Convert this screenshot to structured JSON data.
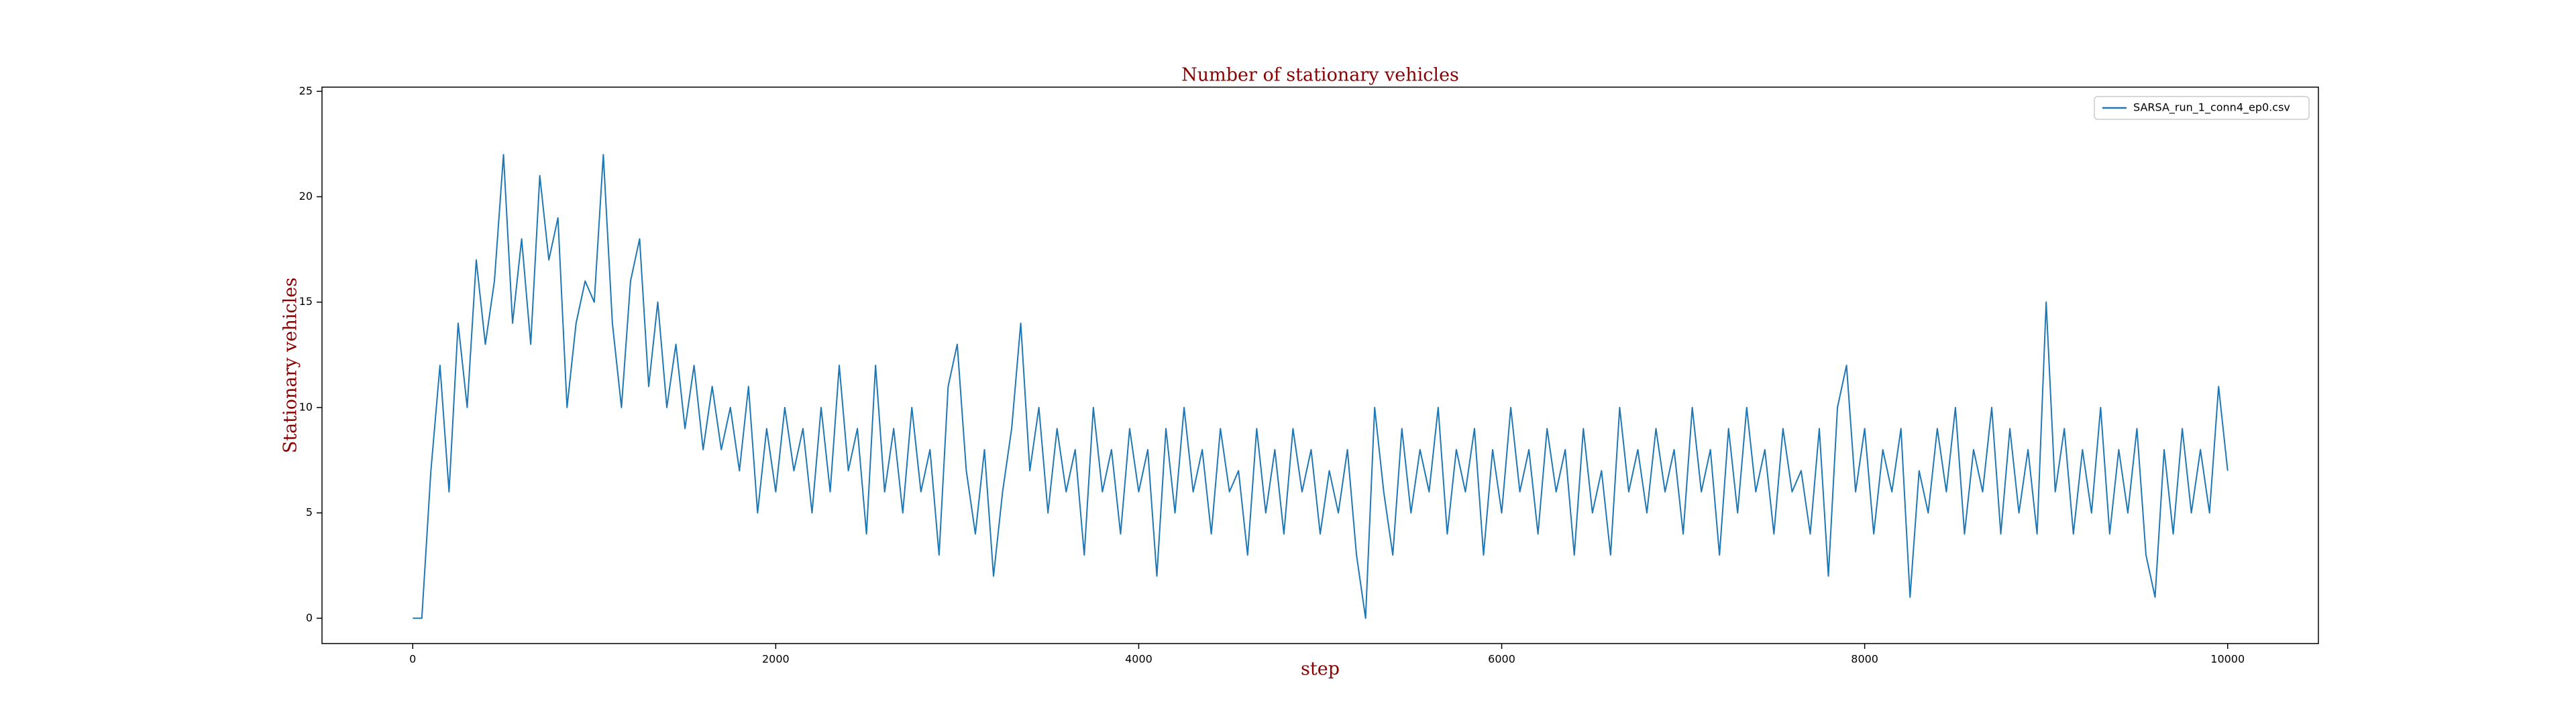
{
  "chart_data": {
    "type": "line",
    "title": "Number of stationary vehicles",
    "xlabel": "step",
    "ylabel": "Stationary vehicles",
    "x": [
      0,
      50,
      100,
      150,
      200,
      250,
      300,
      350,
      400,
      450,
      500,
      550,
      600,
      650,
      700,
      750,
      800,
      850,
      900,
      950,
      1000,
      1050,
      1100,
      1150,
      1200,
      1250,
      1300,
      1350,
      1400,
      1450,
      1500,
      1550,
      1600,
      1650,
      1700,
      1750,
      1800,
      1850,
      1900,
      1950,
      2000,
      2050,
      2100,
      2150,
      2200,
      2250,
      2300,
      2350,
      2400,
      2450,
      2500,
      2550,
      2600,
      2650,
      2700,
      2750,
      2800,
      2850,
      2900,
      2950,
      3000,
      3050,
      3100,
      3150,
      3200,
      3250,
      3300,
      3350,
      3400,
      3450,
      3500,
      3550,
      3600,
      3650,
      3700,
      3750,
      3800,
      3850,
      3900,
      3950,
      4000,
      4050,
      4100,
      4150,
      4200,
      4250,
      4300,
      4350,
      4400,
      4450,
      4500,
      4550,
      4600,
      4650,
      4700,
      4750,
      4800,
      4850,
      4900,
      4950,
      5000,
      5050,
      5100,
      5150,
      5200,
      5250,
      5300,
      5350,
      5400,
      5450,
      5500,
      5550,
      5600,
      5650,
      5700,
      5750,
      5800,
      5850,
      5900,
      5950,
      6000,
      6050,
      6100,
      6150,
      6200,
      6250,
      6300,
      6350,
      6400,
      6450,
      6500,
      6550,
      6600,
      6650,
      6700,
      6750,
      6800,
      6850,
      6900,
      6950,
      7000,
      7050,
      7100,
      7150,
      7200,
      7250,
      7300,
      7350,
      7400,
      7450,
      7500,
      7550,
      7600,
      7650,
      7700,
      7750,
      7800,
      7850,
      7900,
      7950,
      8000,
      8050,
      8100,
      8150,
      8200,
      8250,
      8300,
      8350,
      8400,
      8450,
      8500,
      8550,
      8600,
      8650,
      8700,
      8750,
      8800,
      8850,
      8900,
      8950,
      9000,
      9050,
      9100,
      9150,
      9200,
      9250,
      9300,
      9350,
      9400,
      9450,
      9500,
      9550,
      9600,
      9650,
      9700,
      9750,
      9800,
      9850,
      9900,
      9950,
      10000
    ],
    "series": [
      {
        "name": "SARSA_run_1_conn4_ep0.csv",
        "color": "#1f77b4",
        "values": [
          0,
          0,
          7,
          12,
          6,
          14,
          10,
          17,
          13,
          16,
          22,
          14,
          18,
          13,
          21,
          17,
          19,
          10,
          14,
          16,
          15,
          22,
          14,
          10,
          16,
          18,
          11,
          15,
          10,
          13,
          9,
          12,
          8,
          11,
          8,
          10,
          7,
          11,
          5,
          9,
          6,
          10,
          7,
          9,
          5,
          10,
          6,
          12,
          7,
          9,
          4,
          12,
          6,
          9,
          5,
          10,
          6,
          8,
          3,
          11,
          13,
          7,
          4,
          8,
          2,
          6,
          9,
          14,
          7,
          10,
          5,
          9,
          6,
          8,
          3,
          10,
          6,
          8,
          4,
          9,
          6,
          8,
          2,
          9,
          5,
          10,
          6,
          8,
          4,
          9,
          6,
          7,
          3,
          9,
          5,
          8,
          4,
          9,
          6,
          8,
          4,
          7,
          5,
          8,
          3,
          0,
          10,
          6,
          3,
          9,
          5,
          8,
          6,
          10,
          4,
          8,
          6,
          9,
          3,
          8,
          5,
          10,
          6,
          8,
          4,
          9,
          6,
          8,
          3,
          9,
          5,
          7,
          3,
          10,
          6,
          8,
          5,
          9,
          6,
          8,
          4,
          10,
          6,
          8,
          3,
          9,
          5,
          10,
          6,
          8,
          4,
          9,
          6,
          7,
          4,
          9,
          2,
          10,
          12,
          6,
          9,
          4,
          8,
          6,
          9,
          1,
          7,
          5,
          9,
          6,
          10,
          4,
          8,
          6,
          10,
          4,
          9,
          5,
          8,
          4,
          15,
          6,
          9,
          4,
          8,
          5,
          10,
          4,
          8,
          5,
          9,
          3,
          1,
          8,
          4,
          9,
          5,
          8,
          5,
          11,
          7
        ]
      }
    ],
    "xlim": [
      -500,
      10500
    ],
    "ylim": [
      -1.2,
      25.2
    ],
    "xticks": [
      0,
      2000,
      4000,
      6000,
      8000,
      10000
    ],
    "yticks": [
      0,
      5,
      10,
      15,
      20,
      25
    ],
    "legend": "upper right"
  }
}
